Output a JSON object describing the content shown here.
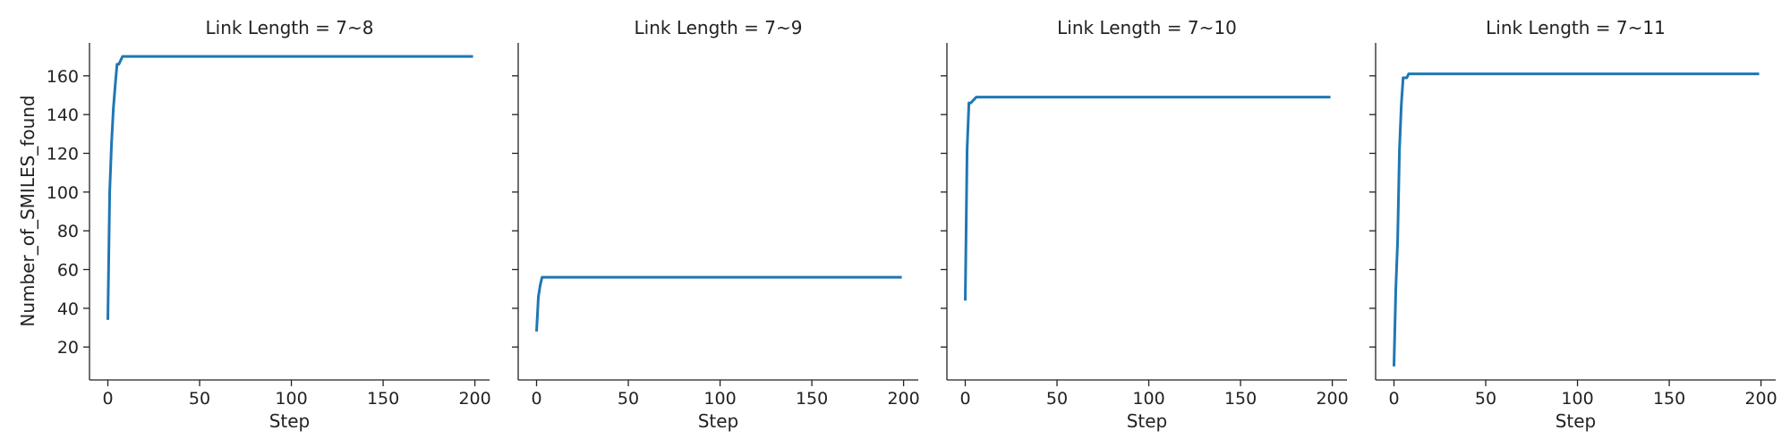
{
  "chart_data": {
    "type": "line",
    "line_color": "#1f77b4",
    "shared_y": true,
    "ylabel": "Number_of_SMILES_found",
    "xlabel": "Step",
    "xlim": [
      -10,
      208
    ],
    "ylim": [
      3,
      177
    ],
    "x_ticks": [
      0,
      50,
      100,
      150,
      200
    ],
    "y_ticks": [
      20,
      40,
      60,
      80,
      100,
      120,
      140,
      160
    ],
    "grid": false,
    "panels": [
      {
        "title": "Link Length = 7~8",
        "series": [
          {
            "x": [
              0,
              1,
              2,
              3,
              4,
              5,
              6,
              8,
              10,
              20,
              50,
              100,
              150,
              199
            ],
            "y": [
              34,
              100,
              125,
              143,
              155,
              166,
              166,
              170,
              170,
              170,
              170,
              170,
              170,
              170
            ]
          }
        ]
      },
      {
        "title": "Link Length = 7~9",
        "series": [
          {
            "x": [
              0,
              1,
              2,
              3,
              4,
              10,
              50,
              100,
              150,
              199
            ],
            "y": [
              28,
              46,
              52,
              56,
              56,
              56,
              56,
              56,
              56,
              56
            ]
          }
        ]
      },
      {
        "title": "Link Length = 7~10",
        "series": [
          {
            "x": [
              0,
              1,
              2,
              3,
              4,
              5,
              6,
              8,
              10,
              50,
              100,
              150,
              199
            ],
            "y": [
              44,
              122,
              146,
              146,
              147,
              148,
              149,
              149,
              149,
              149,
              149,
              149,
              149
            ]
          }
        ]
      },
      {
        "title": "Link Length = 7~11",
        "series": [
          {
            "x": [
              0,
              1,
              2,
              3,
              4,
              5,
              6,
              7,
              8,
              10,
              50,
              100,
              150,
              199
            ],
            "y": [
              10,
              50,
              75,
              122,
              145,
              159,
              159,
              159,
              161,
              161,
              161,
              161,
              161,
              161
            ]
          }
        ]
      }
    ]
  }
}
